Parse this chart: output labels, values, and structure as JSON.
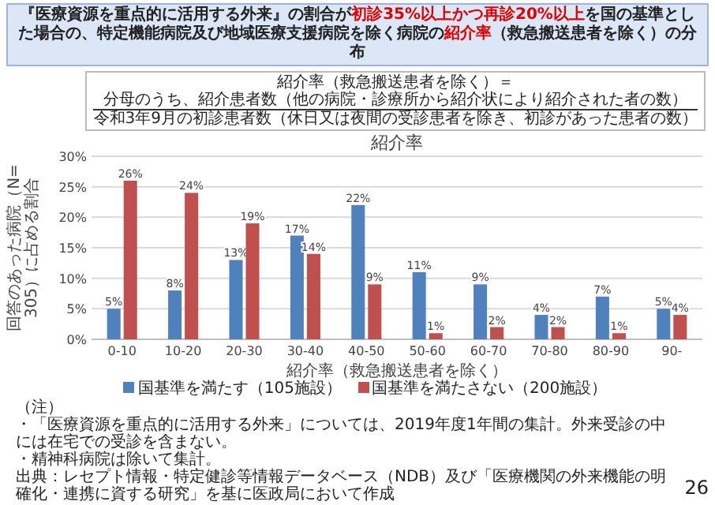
{
  "chart_data": {
    "type": "bar",
    "title": "『医療資源を重点的に活用する外来』の割合が**初診35%以上かつ再診20%以上**を国の基準とした場合の、特定機能病院及び地域医療支援病院を除く病院の**紹介率**（救急搬送患者を除く）の分布",
    "subtitle": "紹介率",
    "xlabel": "紹介率（救急搬送患者を除く）",
    "ylabel": "回答のあった病院（N=305）に占める割合",
    "categories": [
      "0-10",
      "10-20",
      "20-30",
      "30-40",
      "40-50",
      "50-60",
      "60-70",
      "70-80",
      "80-90",
      "90-"
    ],
    "series": [
      {
        "name": "国基準を満たす（105施設）",
        "color": "#4f81bd",
        "values": [
          5,
          8,
          13,
          17,
          22,
          11,
          9,
          4,
          7,
          5
        ],
        "value_labels": [
          "5%",
          "8%",
          "13%",
          "17%",
          "22%",
          "11%",
          "9%",
          "4%",
          "7%",
          "5%"
        ]
      },
      {
        "name": "国基準を満たさない（200施設）",
        "color": "#c0504d",
        "values": [
          26,
          24,
          19,
          14,
          9,
          1,
          2,
          2,
          1,
          4
        ],
        "value_labels": [
          "26%",
          "24%",
          "19%",
          "14%",
          "9%",
          "1%",
          "2%",
          "2%",
          "1%",
          "4%"
        ]
      }
    ],
    "ylim": [
      0,
      30
    ],
    "yticks": [
      {
        "value": 0,
        "label": "0%"
      },
      {
        "value": 5,
        "label": "5%"
      },
      {
        "value": 10,
        "label": "10%"
      },
      {
        "value": 15,
        "label": "15%"
      },
      {
        "value": 20,
        "label": "20%"
      },
      {
        "value": 25,
        "label": "25%"
      },
      {
        "value": 30,
        "label": "30%"
      }
    ],
    "grid": "y",
    "legend": "bottom",
    "annotations": [
      "紹介率（救急搬送患者を除く）＝",
      "分母のうち、紹介患者数（他の病院・診療所から紹介状により紹介された者の数）",
      "令和3年9月の初診患者数（休日又は夜間の受診患者を除き、初診があった患者の数）",
      "（注）",
      "・「医療資源を重点的に活用する外来」については、2019年度1年間の集計。外来受診の中には在宅での受診を含まない。",
      "・精神科病院は除いて集計。",
      "出典：レセプト情報・特定健診等情報データベース（NDB）及び「医療機関の外来機能の明確化・連携に資する研究」を基に医政局において作成",
      "26"
    ]
  }
}
